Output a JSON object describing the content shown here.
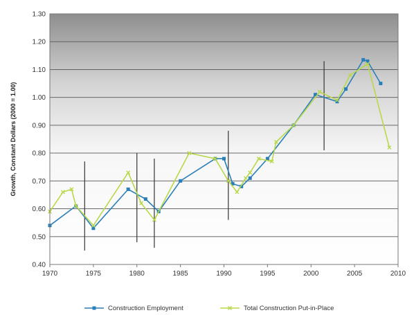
{
  "chart_data": {
    "type": "line",
    "title": "",
    "xlabel": "",
    "ylabel": "Growth, Constant Dollars (2000 = 1.00)",
    "xlim": [
      1970,
      2010
    ],
    "ylim": [
      0.4,
      1.3
    ],
    "x_ticks": [
      "1970",
      "1975",
      "1980",
      "1985",
      "1990",
      "1995",
      "2000",
      "2005",
      "2010"
    ],
    "y_ticks": [
      "0.40",
      "0.50",
      "0.60",
      "0.70",
      "0.80",
      "0.90",
      "1.00",
      "1.10",
      "1.20",
      "1.30"
    ],
    "grid": true,
    "legend_position": "bottom",
    "recession_markers": [
      {
        "x": 1974,
        "low": 0.45,
        "high": 0.77
      },
      {
        "x": 1980,
        "low": 0.48,
        "high": 0.8
      },
      {
        "x": 1982,
        "low": 0.46,
        "high": 0.78
      },
      {
        "x": 1990.5,
        "low": 0.56,
        "high": 0.88
      },
      {
        "x": 2001.5,
        "low": 0.81,
        "high": 1.13
      }
    ],
    "series": [
      {
        "name": "Construction Employment",
        "color": "#2a7fb8",
        "x": [
          1970,
          1973,
          1975,
          1979,
          1981,
          1982.5,
          1985,
          1989,
          1990,
          1991,
          1992,
          1993,
          1995,
          1998,
          2000.5,
          2003,
          2004,
          2006,
          2006.5,
          2008
        ],
        "values": [
          0.54,
          0.61,
          0.53,
          0.67,
          0.635,
          0.59,
          0.7,
          0.78,
          0.78,
          0.69,
          0.68,
          0.71,
          0.78,
          0.9,
          1.01,
          0.985,
          1.03,
          1.135,
          1.13,
          1.05
        ]
      },
      {
        "name": "Total Construction Put-in-Place",
        "color": "#b8d84a",
        "x": [
          1970,
          1971.5,
          1972.5,
          1973,
          1975,
          1979,
          1980.5,
          1982,
          1986,
          1989,
          1990.5,
          1991.5,
          1992.5,
          1993,
          1994,
          1995.5,
          1996,
          1998,
          2001,
          2003,
          2004.5,
          2006.5,
          2009
        ],
        "values": [
          0.59,
          0.66,
          0.67,
          0.61,
          0.54,
          0.73,
          0.62,
          0.56,
          0.8,
          0.78,
          0.7,
          0.66,
          0.71,
          0.73,
          0.78,
          0.77,
          0.84,
          0.9,
          1.02,
          0.99,
          1.08,
          1.12,
          0.82
        ]
      }
    ]
  }
}
